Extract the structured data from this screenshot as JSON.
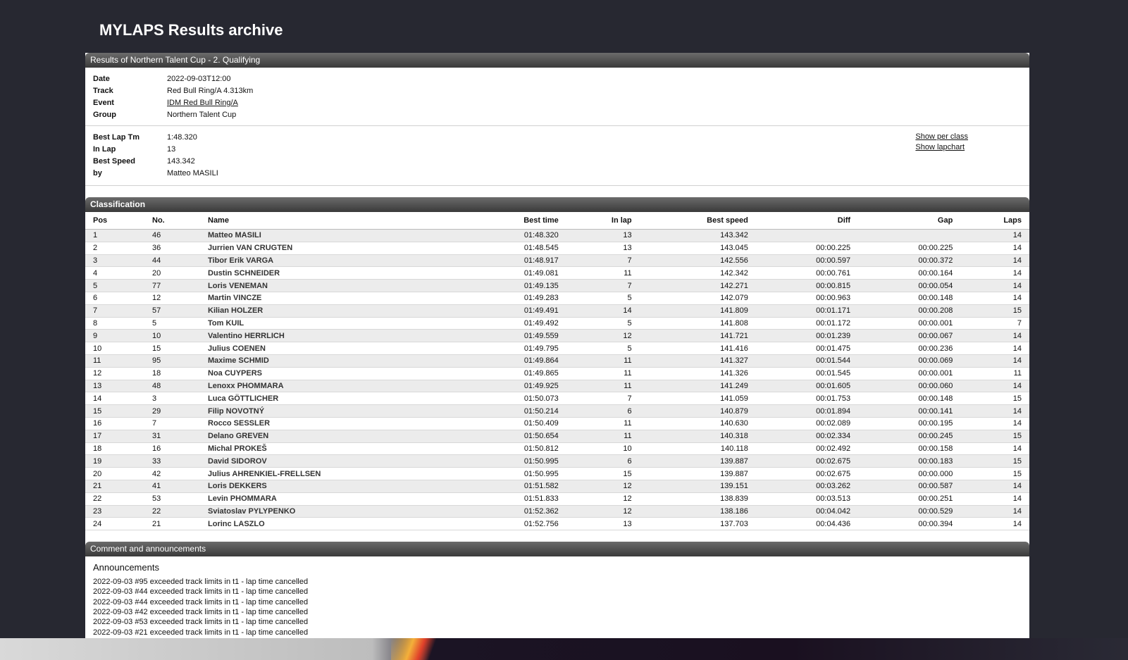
{
  "site": {
    "title": "MYLAPS Results archive"
  },
  "results_header": "Results of Northern Talent Cup - 2. Qualifying",
  "info": [
    {
      "key": "Date",
      "value": "2022-09-03T12:00"
    },
    {
      "key": "Track",
      "value": "Red Bull Ring/A 4.313km"
    },
    {
      "key": "Event",
      "value": "IDM Red Bull Ring/A",
      "link": true
    },
    {
      "key": "Group",
      "value": "Northern Talent Cup"
    }
  ],
  "best": [
    {
      "key": "Best Lap Tm",
      "value": "1:48.320"
    },
    {
      "key": "In Lap",
      "value": "13"
    },
    {
      "key": "Best Speed",
      "value": "143.342"
    },
    {
      "key": "by",
      "value": "Matteo MASILI"
    }
  ],
  "links": {
    "per_class": "Show per class",
    "lapchart": "Show lapchart"
  },
  "classification": {
    "title": "Classification",
    "columns": [
      "Pos",
      "No.",
      "Name",
      "Best time",
      "In lap",
      "Best speed",
      "Diff",
      "Gap",
      "Laps"
    ],
    "rows": [
      [
        "1",
        "46",
        "Matteo MASILI",
        "01:48.320",
        "13",
        "143.342",
        "",
        "",
        "14"
      ],
      [
        "2",
        "36",
        "Jurrien VAN CRUGTEN",
        "01:48.545",
        "13",
        "143.045",
        "00:00.225",
        "00:00.225",
        "14"
      ],
      [
        "3",
        "44",
        "Tibor Erik VARGA",
        "01:48.917",
        "7",
        "142.556",
        "00:00.597",
        "00:00.372",
        "14"
      ],
      [
        "4",
        "20",
        "Dustin SCHNEIDER",
        "01:49.081",
        "11",
        "142.342",
        "00:00.761",
        "00:00.164",
        "14"
      ],
      [
        "5",
        "77",
        "Loris VENEMAN",
        "01:49.135",
        "7",
        "142.271",
        "00:00.815",
        "00:00.054",
        "14"
      ],
      [
        "6",
        "12",
        "Martin VINCZE",
        "01:49.283",
        "5",
        "142.079",
        "00:00.963",
        "00:00.148",
        "14"
      ],
      [
        "7",
        "57",
        "Kilian HOLZER",
        "01:49.491",
        "14",
        "141.809",
        "00:01.171",
        "00:00.208",
        "15"
      ],
      [
        "8",
        "5",
        "Tom KUIL",
        "01:49.492",
        "5",
        "141.808",
        "00:01.172",
        "00:00.001",
        "7"
      ],
      [
        "9",
        "10",
        "Valentino HERRLICH",
        "01:49.559",
        "12",
        "141.721",
        "00:01.239",
        "00:00.067",
        "14"
      ],
      [
        "10",
        "15",
        "Julius COENEN",
        "01:49.795",
        "5",
        "141.416",
        "00:01.475",
        "00:00.236",
        "14"
      ],
      [
        "11",
        "95",
        "Maxime SCHMID",
        "01:49.864",
        "11",
        "141.327",
        "00:01.544",
        "00:00.069",
        "14"
      ],
      [
        "12",
        "18",
        "Noa CUYPERS",
        "01:49.865",
        "11",
        "141.326",
        "00:01.545",
        "00:00.001",
        "11"
      ],
      [
        "13",
        "48",
        "Lenoxx PHOMMARA",
        "01:49.925",
        "11",
        "141.249",
        "00:01.605",
        "00:00.060",
        "14"
      ],
      [
        "14",
        "3",
        "Luca GÖTTLICHER",
        "01:50.073",
        "7",
        "141.059",
        "00:01.753",
        "00:00.148",
        "15"
      ],
      [
        "15",
        "29",
        "Filip NOVOTNÝ",
        "01:50.214",
        "6",
        "140.879",
        "00:01.894",
        "00:00.141",
        "14"
      ],
      [
        "16",
        "7",
        "Rocco SESSLER",
        "01:50.409",
        "11",
        "140.630",
        "00:02.089",
        "00:00.195",
        "14"
      ],
      [
        "17",
        "31",
        "Delano GREVEN",
        "01:50.654",
        "11",
        "140.318",
        "00:02.334",
        "00:00.245",
        "15"
      ],
      [
        "18",
        "16",
        "Michal PROKEŠ",
        "01:50.812",
        "10",
        "140.118",
        "00:02.492",
        "00:00.158",
        "14"
      ],
      [
        "19",
        "33",
        "David SIDOROV",
        "01:50.995",
        "6",
        "139.887",
        "00:02.675",
        "00:00.183",
        "15"
      ],
      [
        "20",
        "42",
        "Julius AHRENKIEL-FRELLSEN",
        "01:50.995",
        "15",
        "139.887",
        "00:02.675",
        "00:00.000",
        "15"
      ],
      [
        "21",
        "41",
        "Loris DEKKERS",
        "01:51.582",
        "12",
        "139.151",
        "00:03.262",
        "00:00.587",
        "14"
      ],
      [
        "22",
        "53",
        "Levin PHOMMARA",
        "01:51.833",
        "12",
        "138.839",
        "00:03.513",
        "00:00.251",
        "14"
      ],
      [
        "23",
        "22",
        "Sviatoslav PYLYPENKO",
        "01:52.362",
        "12",
        "138.186",
        "00:04.042",
        "00:00.529",
        "14"
      ],
      [
        "24",
        "21",
        "Lorinc LASZLO",
        "01:52.756",
        "13",
        "137.703",
        "00:04.436",
        "00:00.394",
        "14"
      ]
    ]
  },
  "comments": {
    "title": "Comment and announcements",
    "subtitle": "Announcements",
    "items": [
      "2022-09-03 #95 exceeded track limits in t1 - lap time cancelled",
      "2022-09-03 #44 exceeded track limits in t1 - lap time cancelled",
      "2022-09-03 #44 exceeded track limits in t1 - lap time cancelled",
      "2022-09-03 #42 exceeded track limits in t1 - lap time cancelled",
      "2022-09-03 #53 exceeded track limits in t1 - lap time cancelled",
      "2022-09-03 #21 exceeded track limits in t1 - lap time cancelled"
    ]
  }
}
